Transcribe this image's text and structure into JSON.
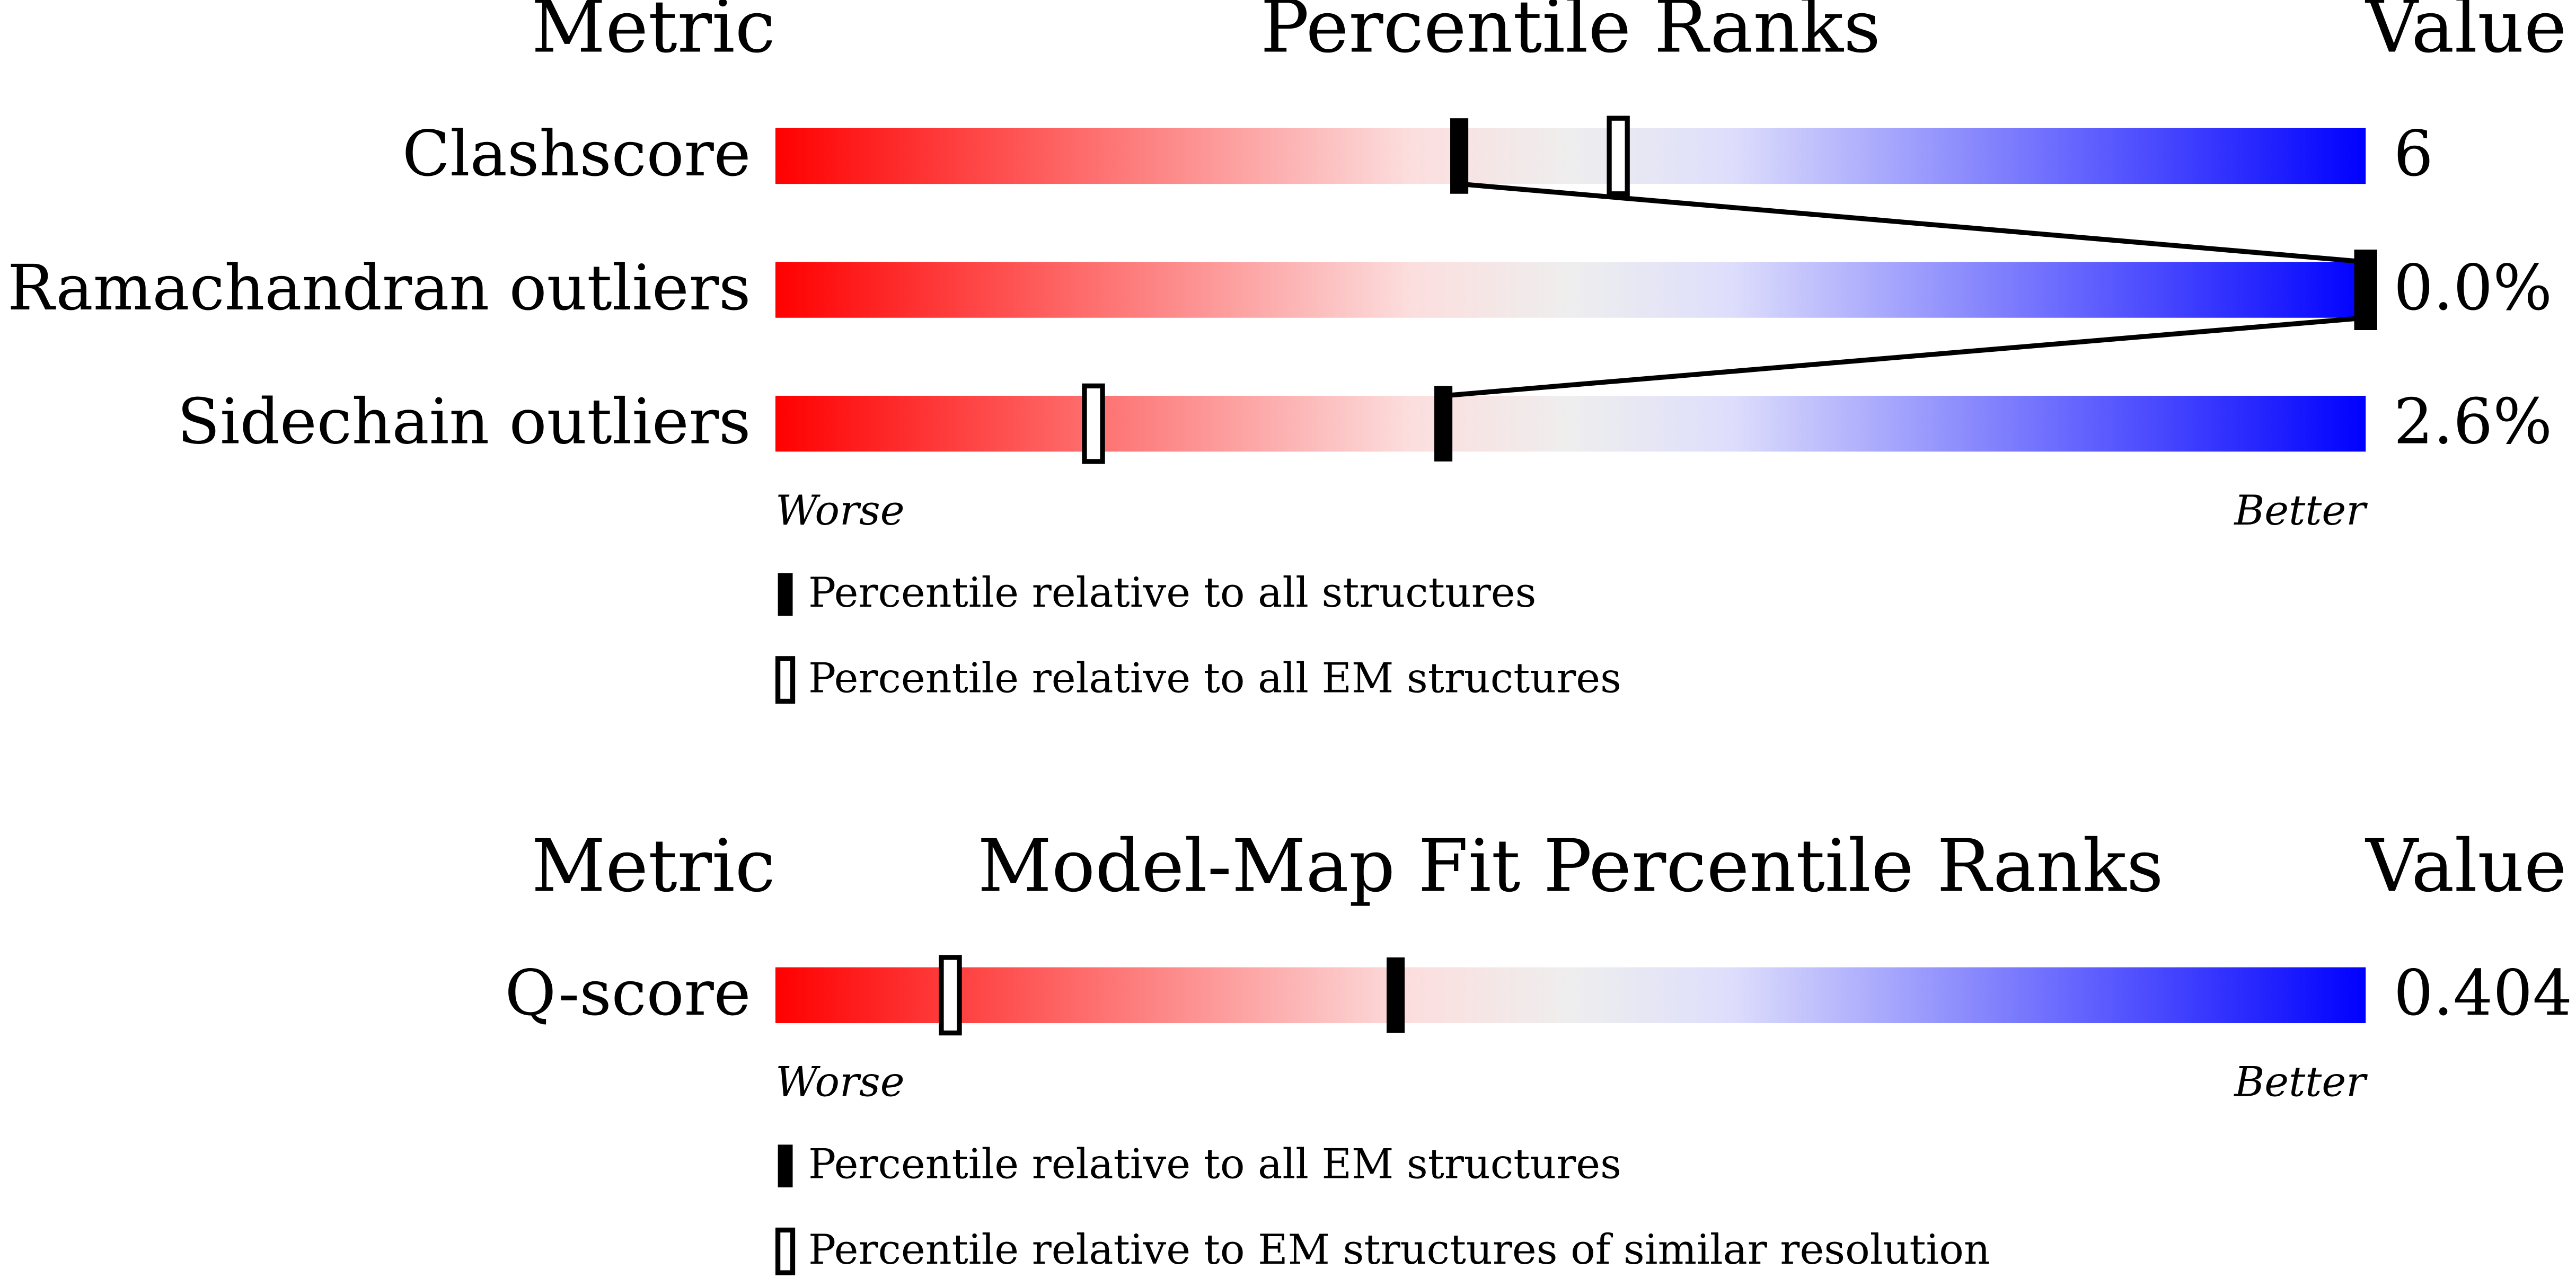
{
  "chart_data": [
    {
      "type": "percentile-slider",
      "headers": {
        "metric": "Metric",
        "title": "Percentile Ranks",
        "value": "Value"
      },
      "xlim": [
        0,
        100
      ],
      "metrics": [
        {
          "name": "Clashscore",
          "value": "6",
          "percentiles": [
            43,
            53
          ]
        },
        {
          "name": "Ramachandran outliers",
          "value": "0.0%",
          "percentiles": [
            100,
            100
          ]
        },
        {
          "name": "Sidechain outliers",
          "value": "2.6%",
          "percentiles": [
            42,
            20
          ]
        }
      ],
      "axis_labels": {
        "worse": "Worse",
        "better": "Better"
      },
      "legend": [
        {
          "label": "Percentile relative to all structures",
          "filled": true
        },
        {
          "label": "Percentile relative to all EM structures",
          "filled": false
        }
      ]
    },
    {
      "type": "percentile-slider",
      "headers": {
        "metric": "Metric",
        "title": "Model-Map Fit Percentile Ranks",
        "value": "Value"
      },
      "xlim": [
        0,
        100
      ],
      "metrics": [
        {
          "name": "Q-score",
          "value": "0.404",
          "percentiles": [
            39,
            11
          ]
        }
      ],
      "axis_labels": {
        "worse": "Worse",
        "better": "Better"
      },
      "legend": [
        {
          "label": "Percentile relative to all EM structures",
          "filled": true
        },
        {
          "label": "Percentile relative to EM structures of similar resolution",
          "filled": false
        }
      ]
    }
  ]
}
